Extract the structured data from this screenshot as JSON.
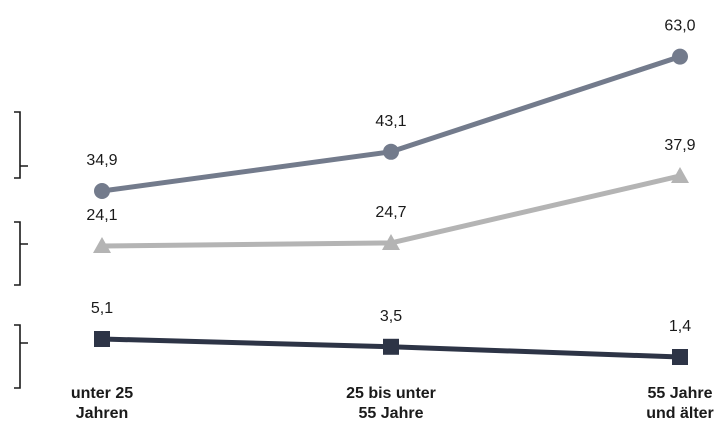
{
  "chart_data": {
    "type": "line",
    "categories": [
      [
        "unter 25",
        "Jahren"
      ],
      [
        "25 bis unter",
        "55 Jahre"
      ],
      [
        "55 Jahre",
        "und älter"
      ]
    ],
    "series": [
      {
        "values": [
          34.9,
          43.1,
          63.0
        ],
        "labels": [
          "34,9",
          "43,1",
          "63,0"
        ],
        "marker": "circle",
        "color": "#737b8c"
      },
      {
        "values": [
          24.1,
          24.7,
          37.9
        ],
        "labels": [
          "24,1",
          "24,7",
          "37,9"
        ],
        "marker": "triangle",
        "color": "#b4b4b4"
      },
      {
        "values": [
          5.1,
          3.5,
          1.4
        ],
        "labels": [
          "5,1",
          "3,5",
          "1,4"
        ],
        "marker": "square",
        "color": "#2d3446"
      }
    ],
    "legend": "left brackets, no text",
    "grid": false,
    "ylim": [
      0,
      70
    ]
  }
}
